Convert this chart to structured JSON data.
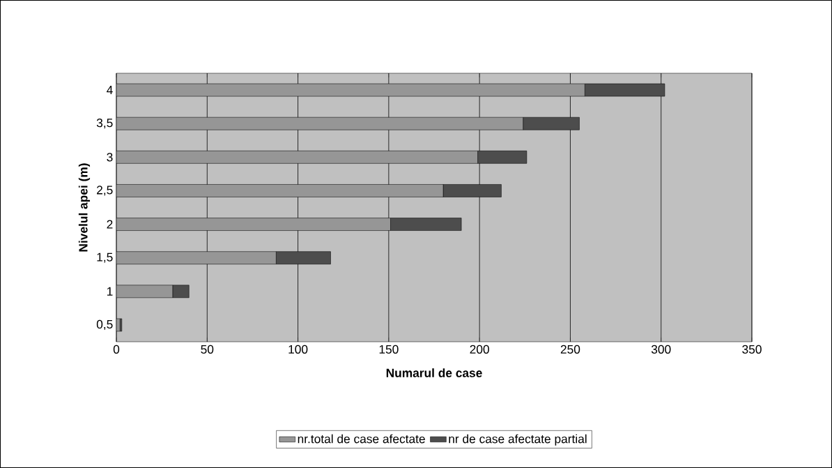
{
  "chart_data": {
    "type": "bar",
    "orientation": "horizontal",
    "stacked": true,
    "xlabel": "Numarul de case",
    "ylabel": "Nivelul apei (m)",
    "categories": [
      "4",
      "3,5",
      "3",
      "2,5",
      "2",
      "1,5",
      "1",
      "0,5"
    ],
    "series": [
      {
        "name": "nr.total de case afectate",
        "color": "#969696",
        "values": [
          258,
          224,
          199,
          180,
          151,
          88,
          31,
          2
        ]
      },
      {
        "name": "nr de case afectate partial",
        "color": "#4d4d4d",
        "values": [
          44,
          31,
          27,
          32,
          39,
          30,
          9,
          1
        ]
      }
    ],
    "xlim": [
      0,
      350
    ],
    "xticks": [
      0,
      50,
      100,
      150,
      200,
      250,
      300,
      350
    ],
    "grid": "x",
    "legend": "bottom"
  }
}
